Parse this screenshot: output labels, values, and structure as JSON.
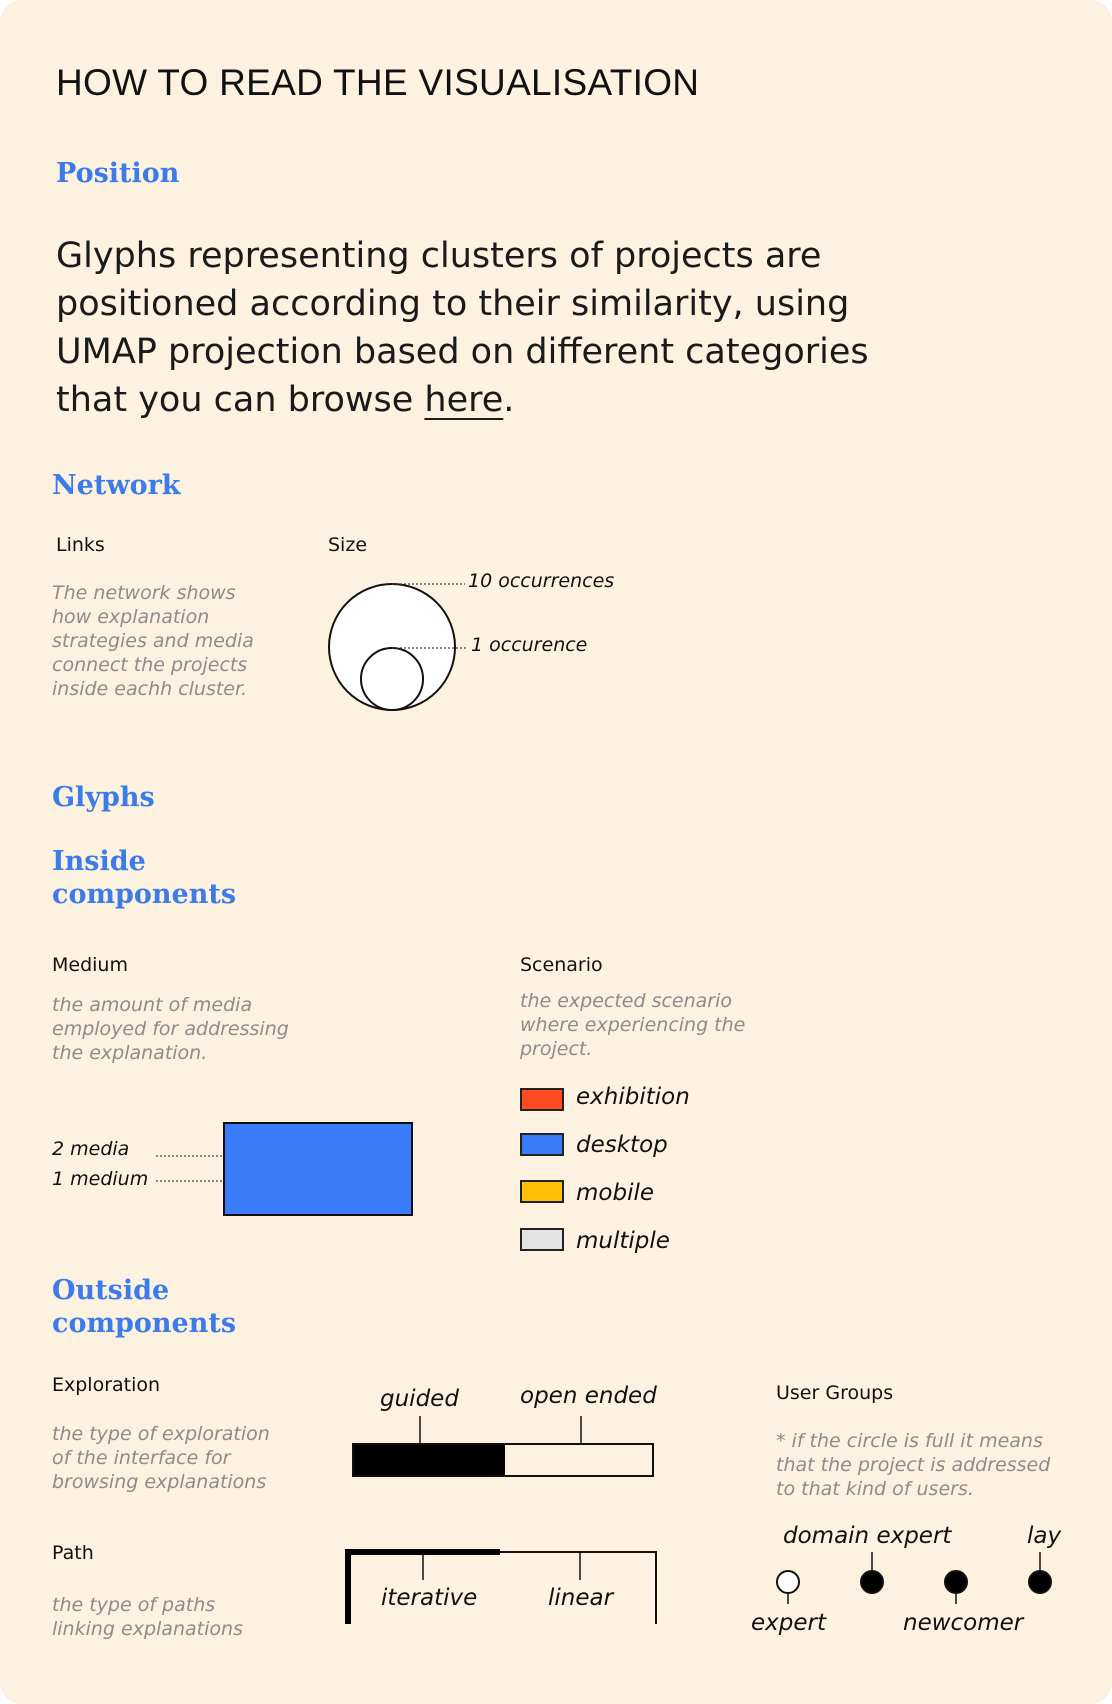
{
  "title": "HOW TO READ THE VISUALISATION",
  "position": {
    "heading": "Position",
    "text_before_link": "Glyphs representing clusters of projects are positioned according to their similarity, using UMAP projection based on different categories that you can browse ",
    "link_text": "here",
    "text_after_link": "."
  },
  "network": {
    "heading": "Network",
    "links": {
      "label": "Links",
      "description": "The network shows how explanation strategies and media connect the projects inside eachh cluster."
    },
    "size": {
      "label": "Size",
      "large_annotation": "10 occurrences",
      "small_annotation": "1 occurence"
    }
  },
  "glyphs": {
    "heading": "Glyphs",
    "inside": {
      "heading_line1": "Inside",
      "heading_line2": "components",
      "medium": {
        "label": "Medium",
        "description": "the amount of media employed for addressing the explanation.",
        "annotation_top": "2 media",
        "annotation_bottom": "1 medium",
        "color": "#3a7bfa"
      },
      "scenario": {
        "label": "Scenario",
        "description": "the expected scenario where experiencing the project.",
        "items": [
          {
            "label": "exhibition",
            "color": "#ff4a22"
          },
          {
            "label": "desktop",
            "color": "#3a7bfa"
          },
          {
            "label": "mobile",
            "color": "#ffc107"
          },
          {
            "label": "multiple",
            "color": "#e4e4e4"
          }
        ]
      }
    },
    "outside": {
      "heading_line1": "Outside",
      "heading_line2": "components",
      "exploration": {
        "label": "Exploration",
        "description": "the type of exploration of the interface for browsing explanations",
        "left_label": "guided",
        "right_label": "open ended"
      },
      "path": {
        "label": "Path",
        "description": "the type of paths linking explanations",
        "left_label": "iterative",
        "right_label": "linear"
      },
      "user_groups": {
        "label": "User Groups",
        "note": "* if the circle is full it means that the project is addressed to that kind of users.",
        "groups": [
          {
            "label": "expert",
            "filled": false
          },
          {
            "label": "domain expert",
            "filled": true
          },
          {
            "label": "newcomer",
            "filled": true
          },
          {
            "label": "lay",
            "filled": true
          }
        ]
      }
    }
  }
}
